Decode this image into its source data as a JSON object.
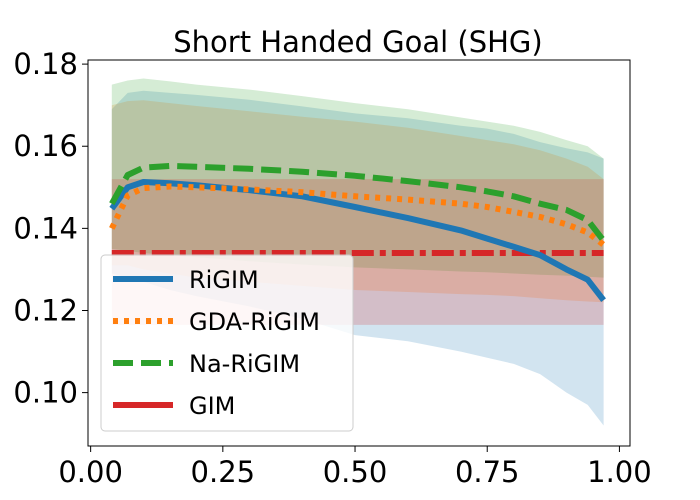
{
  "chart_data": {
    "type": "line",
    "title": "Short Handed Goal (SHG)",
    "xlabel": "",
    "ylabel": "",
    "xlim": [
      -0.005,
      1.02
    ],
    "ylim": [
      0.087,
      0.181
    ],
    "x_ticks": [
      "0.00",
      "0.25",
      "0.50",
      "0.75",
      "1.00"
    ],
    "x_tick_values": [
      0.0,
      0.25,
      0.5,
      0.75,
      1.0
    ],
    "y_ticks": [
      "0.10",
      "0.12",
      "0.14",
      "0.16",
      "0.18"
    ],
    "y_tick_values": [
      0.1,
      0.12,
      0.14,
      0.16,
      0.18
    ],
    "grid": false,
    "legend_position": "lower-left",
    "x": [
      0.04,
      0.07,
      0.1,
      0.15,
      0.2,
      0.3,
      0.4,
      0.5,
      0.6,
      0.7,
      0.75,
      0.8,
      0.85,
      0.9,
      0.94,
      0.97
    ],
    "series": [
      {
        "name": "RiGIM",
        "color": "#1f77b4",
        "dash": "solid",
        "values": [
          0.1448,
          0.15,
          0.1513,
          0.151,
          0.1505,
          0.1493,
          0.1478,
          0.1452,
          0.1425,
          0.1395,
          0.1375,
          0.1355,
          0.1335,
          0.13,
          0.1275,
          0.1225
        ],
        "band_upper": [
          0.169,
          0.173,
          0.1735,
          0.173,
          0.1725,
          0.1713,
          0.1697,
          0.168,
          0.1668,
          0.165,
          0.1643,
          0.163,
          0.161,
          0.1595,
          0.1585,
          0.157
        ],
        "band_lower": [
          0.129,
          0.128,
          0.127,
          0.125,
          0.1235,
          0.121,
          0.118,
          0.114,
          0.1125,
          0.11,
          0.1085,
          0.107,
          0.1045,
          0.1,
          0.097,
          0.092
        ]
      },
      {
        "name": "GDA-RiGIM",
        "color": "#ff7f0e",
        "dash": "dotted",
        "values": [
          0.14,
          0.148,
          0.1498,
          0.1502,
          0.15,
          0.1495,
          0.1488,
          0.1478,
          0.147,
          0.146,
          0.1452,
          0.144,
          0.1428,
          0.141,
          0.139,
          0.136
        ],
        "band_upper": [
          0.17,
          0.171,
          0.1712,
          0.1705,
          0.1698,
          0.1685,
          0.1672,
          0.166,
          0.1645,
          0.1625,
          0.1615,
          0.1605,
          0.159,
          0.157,
          0.155,
          0.152
        ],
        "band_lower": [
          0.131,
          0.131,
          0.13,
          0.129,
          0.128,
          0.127,
          0.126,
          0.125,
          0.1245,
          0.124,
          0.1238,
          0.1235,
          0.123,
          0.1225,
          0.1222,
          0.122
        ]
      },
      {
        "name": "Na-RiGIM",
        "color": "#2ca02c",
        "dash": "dashed",
        "values": [
          0.146,
          0.153,
          0.1548,
          0.1552,
          0.155,
          0.1545,
          0.1538,
          0.1528,
          0.1515,
          0.15,
          0.149,
          0.1478,
          0.146,
          0.1445,
          0.142,
          0.137
        ],
        "band_upper": [
          0.175,
          0.176,
          0.1765,
          0.1758,
          0.175,
          0.1738,
          0.1722,
          0.1705,
          0.169,
          0.167,
          0.166,
          0.165,
          0.1635,
          0.1615,
          0.16,
          0.157
        ],
        "band_lower": [
          0.135,
          0.1345,
          0.134,
          0.1335,
          0.133,
          0.132,
          0.1312,
          0.1305,
          0.13,
          0.1295,
          0.1293,
          0.129,
          0.1287,
          0.1285,
          0.1282,
          0.128
        ]
      },
      {
        "name": "GIM",
        "color": "#d62728",
        "dash": "dashdot",
        "values": [
          0.134,
          0.134,
          0.134,
          0.134,
          0.134,
          0.134,
          0.134,
          0.134,
          0.134,
          0.134,
          0.134,
          0.134,
          0.134,
          0.134,
          0.134,
          0.134
        ],
        "band_upper": [
          0.152,
          0.152,
          0.152,
          0.152,
          0.152,
          0.152,
          0.152,
          0.152,
          0.152,
          0.152,
          0.152,
          0.152,
          0.152,
          0.152,
          0.152,
          0.152
        ],
        "band_lower": [
          0.1165,
          0.1165,
          0.1165,
          0.1165,
          0.1165,
          0.1165,
          0.1165,
          0.1165,
          0.1165,
          0.1165,
          0.1165,
          0.1165,
          0.1165,
          0.1165,
          0.1165,
          0.1165
        ]
      }
    ]
  }
}
